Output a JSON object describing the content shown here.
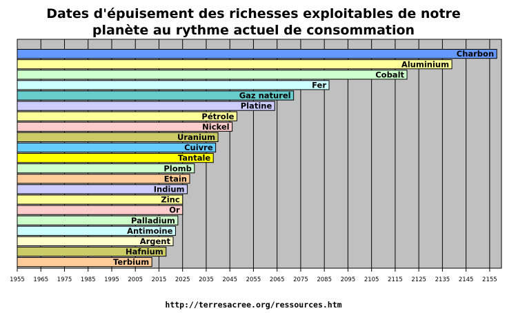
{
  "chart_data": {
    "type": "bar",
    "orientation": "horizontal",
    "title_lines": [
      "Dates d'épuisement des richesses exploitables de notre",
      "planète au rythme actuel de consommation"
    ],
    "xlabel": "",
    "ylabel": "",
    "xlim": [
      1955,
      2160
    ],
    "xticks": [
      1955,
      1965,
      1975,
      1985,
      1995,
      2005,
      2015,
      2025,
      2035,
      2045,
      2055,
      2065,
      2075,
      2085,
      2095,
      2105,
      2115,
      2125,
      2135,
      2145,
      2155
    ],
    "grid": true,
    "legend": "none",
    "categories": [
      "Charbon",
      "Aluminium",
      "Cobalt",
      "Fer",
      "Gaz naturel",
      "Platine",
      "Pétrole",
      "Nickel",
      "Uranium",
      "Cuivre",
      "Tantale",
      "Plomb",
      "Etain",
      "Indium",
      "Zinc",
      "Or",
      "Palladium",
      "Antimoine",
      "Argent",
      "Hafnium",
      "Terbium"
    ],
    "values": [
      2158,
      2139,
      2120,
      2087,
      2072,
      2064,
      2048,
      2046,
      2040,
      2039,
      2038,
      2030,
      2028,
      2027,
      2025,
      2025,
      2023,
      2022,
      2021,
      2018,
      2012
    ],
    "colors": [
      "#6699ff",
      "#ffff99",
      "#ccffcc",
      "#ccffff",
      "#66cccc",
      "#ccccff",
      "#ffff99",
      "#ffcccc",
      "#cccc66",
      "#66ccff",
      "#ffff00",
      "#ccffcc",
      "#ffcc99",
      "#ccccff",
      "#ffff99",
      "#ffcccc",
      "#ccffcc",
      "#ccffff",
      "#ffffcc",
      "#cccc66",
      "#ffcc99"
    ],
    "plot_background": "#c0c0c0",
    "grid_color": "#000000"
  },
  "footer": {
    "source": "http://terresacree.org/ressources.htm"
  }
}
